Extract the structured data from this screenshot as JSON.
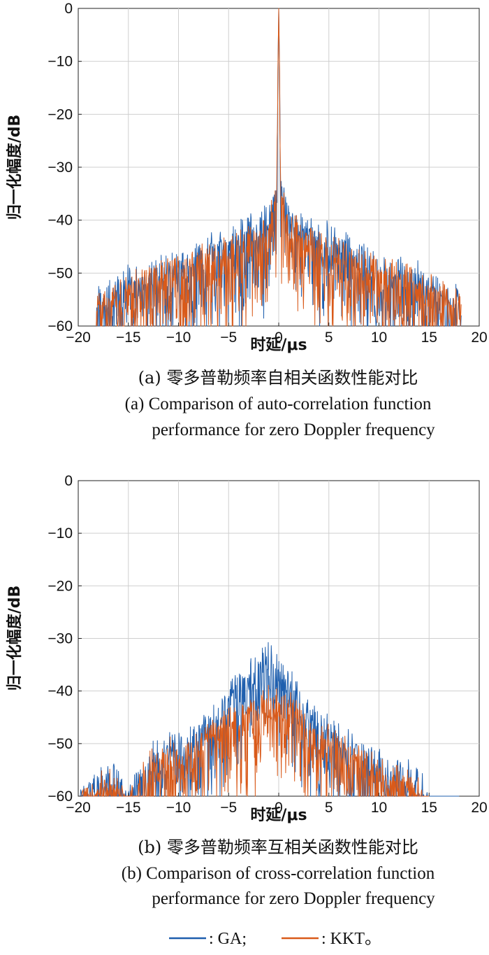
{
  "colors": {
    "GA": "#1f5fae",
    "KKT": "#d95a1a"
  },
  "legend": [
    {
      "name": ": GA;",
      "series": "GA"
    },
    {
      "name": ": KKT。",
      "series": "KKT"
    }
  ],
  "chart_data": [
    {
      "type": "line",
      "id": "a",
      "caption_cn": "(a) 零多普勒频率自相关函数性能对比",
      "caption_en_line1": "(a) Comparison of auto-correlation function",
      "caption_en_line2": "performance for zero Doppler frequency",
      "xlabel": "时延/μs",
      "ylabel": "归一化幅度/dB",
      "xlim": [
        -20,
        20
      ],
      "ylim": [
        -60,
        0
      ],
      "xticks": [
        -20,
        -15,
        -10,
        -5,
        0,
        5,
        10,
        15,
        20
      ],
      "yticks": [
        0,
        -10,
        -20,
        -30,
        -40,
        -50,
        -60
      ],
      "xtick_labels": [
        "−20",
        "−15",
        "−10",
        "−5",
        "0",
        "5",
        "10",
        "15",
        "20"
      ],
      "ytick_labels": [
        "0",
        "−10",
        "−20",
        "−30",
        "−40",
        "−50",
        "−60"
      ],
      "grid": true,
      "series": [
        {
          "name": "GA",
          "envelope": [
            [
              -18.2,
              -52
            ],
            [
              -15,
              -48
            ],
            [
              -10,
              -45
            ],
            [
              -5,
              -40
            ],
            [
              -1,
              -36
            ],
            [
              -0.2,
              -30
            ],
            [
              0,
              0
            ],
            [
              0.2,
              -30
            ],
            [
              1,
              -36
            ],
            [
              5,
              -40
            ],
            [
              10,
              -45
            ],
            [
              15,
              -48
            ],
            [
              18.2,
              -52
            ]
          ]
        },
        {
          "name": "KKT",
          "envelope": [
            [
              -18.2,
              -53
            ],
            [
              -15,
              -49
            ],
            [
              -10,
              -46
            ],
            [
              -5,
              -42
            ],
            [
              -1,
              -38
            ],
            [
              -0.2,
              -29
            ],
            [
              0,
              0
            ],
            [
              0.2,
              -29
            ],
            [
              1,
              -38
            ],
            [
              5,
              -42
            ],
            [
              10,
              -46
            ],
            [
              15,
              -49
            ],
            [
              18.2,
              -53
            ]
          ]
        }
      ]
    },
    {
      "type": "line",
      "id": "b",
      "caption_cn": "(b) 零多普勒频率互相关函数性能对比",
      "caption_en_line1": "(b) Comparison of cross-correlation function",
      "caption_en_line2": "performance for zero Doppler frequency",
      "xlabel": "时延/μs",
      "ylabel": "归一化幅度/dB",
      "xlim": [
        -20,
        20
      ],
      "ylim": [
        -60,
        0
      ],
      "xticks": [
        -20,
        -15,
        -10,
        -5,
        0,
        5,
        10,
        15,
        20
      ],
      "yticks": [
        0,
        -10,
        -20,
        -30,
        -40,
        -50,
        -60
      ],
      "xtick_labels": [
        "−20",
        "−15",
        "−10",
        "−5",
        "0",
        "5",
        "10",
        "15",
        "20"
      ],
      "ytick_labels": [
        "0",
        "−10",
        "−20",
        "−30",
        "−40",
        "−50",
        "−60"
      ],
      "grid": true,
      "series": [
        {
          "name": "GA",
          "envelope": [
            [
              -20,
              -58
            ],
            [
              -17,
              -52
            ],
            [
              -15,
              -56
            ],
            [
              -12,
              -48
            ],
            [
              -9,
              -46
            ],
            [
              -6,
              -40
            ],
            [
              -3,
              -33
            ],
            [
              -1,
              -30
            ],
            [
              1,
              -34
            ],
            [
              3,
              -41
            ],
            [
              6,
              -45
            ],
            [
              8,
              -47
            ],
            [
              11,
              -52
            ],
            [
              13,
              -51
            ],
            [
              14.5,
              -55
            ],
            [
              15,
              -60
            ],
            [
              17,
              -59
            ],
            [
              18,
              -60
            ]
          ]
        },
        {
          "name": "KKT",
          "envelope": [
            [
              -20,
              -58
            ],
            [
              -17,
              -54
            ],
            [
              -15,
              -57
            ],
            [
              -12,
              -49
            ],
            [
              -9,
              -48
            ],
            [
              -6,
              -43
            ],
            [
              -3,
              -40
            ],
            [
              -1,
              -38
            ],
            [
              1,
              -39
            ],
            [
              3,
              -44
            ],
            [
              6,
              -47
            ],
            [
              8,
              -49
            ],
            [
              11,
              -53
            ],
            [
              13,
              -53
            ],
            [
              14.5,
              -57
            ],
            [
              15,
              -60
            ]
          ]
        }
      ]
    }
  ]
}
